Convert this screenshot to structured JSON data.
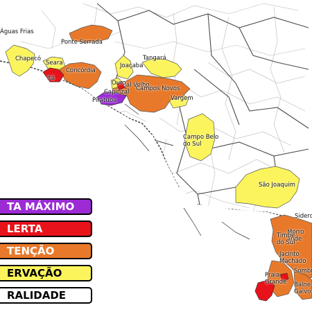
{
  "colors": {
    "alerta_maximo": "#9c2bd6",
    "alerta": "#e8121b",
    "atencao": "#e8792a",
    "observacao": "#fbf45c",
    "normalidade": "#ffffff",
    "border": "#555555"
  },
  "legend": [
    {
      "key": "alerta_maximo",
      "label": "ALERTA MÁXIMO",
      "shown": "TA MÁXIMO"
    },
    {
      "key": "alerta",
      "label": "ALERTA",
      "shown": "LERTA"
    },
    {
      "key": "atencao",
      "label": "ATENÇÃO",
      "shown": "TENÇÃO"
    },
    {
      "key": "observacao",
      "label": "OBSERVAÇÃO",
      "shown": "ERVAÇÃO"
    },
    {
      "key": "normalidade",
      "label": "NORMALIDADE",
      "shown": "RALIDADE"
    }
  ],
  "municipalities": {
    "aguas_frias": "Águas Frias",
    "ponte_serrada": "Ponte Serrada",
    "chapeco": "Chapecó",
    "seara": "Seara",
    "ita": "Itá",
    "concordia": "Concórdia",
    "joacaba": "Joaçaba",
    "tangara": "Tangará",
    "ouro": "Ouro",
    "capinzal": "Capinzal",
    "lacerdopolis_partial": "al Velho",
    "campos_novos": "Campos Novos",
    "piratuba": "Piratuba",
    "vargem": "Vargem",
    "campo_belo": "Campo Belo\ndo Sul",
    "sao_joaquim": "São Joaquim",
    "sidero": "Sidero",
    "morro_grande": "Morro\nande",
    "timbe": "Timbé\ndo Sul",
    "jacinto_machado": "Jacinto\nMachado",
    "praia_grande": "Praia\nGrande",
    "sombrio": "Sombr",
    "balneario_gaivota": "Balne\nGaivo"
  }
}
